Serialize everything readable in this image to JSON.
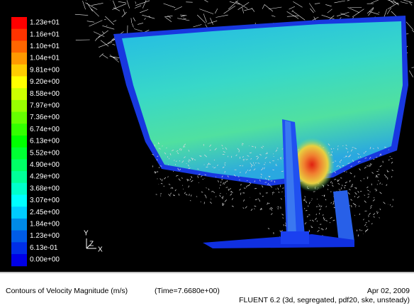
{
  "legend": {
    "labels": [
      "1.23e+01",
      "1.16e+01",
      "1.10e+01",
      "1.04e+01",
      "9.81e+00",
      "9.20e+00",
      "8.58e+00",
      "7.97e+00",
      "7.36e+00",
      "6.74e+00",
      "6.13e+00",
      "5.52e+00",
      "4.90e+00",
      "4.29e+00",
      "3.68e+00",
      "3.07e+00",
      "2.45e+00",
      "1.84e+00",
      "1.23e+00",
      "6.13e-01",
      "0.00e+00"
    ]
  },
  "axes": {
    "y": "Y",
    "z": "Z",
    "x": "X"
  },
  "footer": {
    "caption": "Contours of Velocity Magnitude (m/s)",
    "time": "(Time=7.6680e+00)",
    "date": "Apr 02, 2009",
    "solver": "FLUENT 6.2 (3d, segregated, pdf20, ske, unsteady)"
  }
}
